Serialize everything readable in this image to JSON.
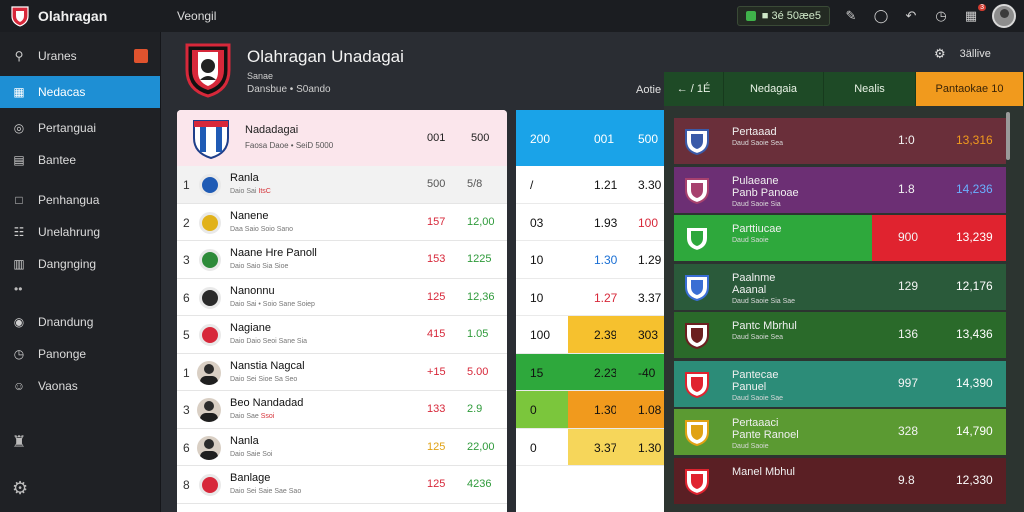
{
  "app": {
    "name": "Olahragan",
    "crumb": "Veongil"
  },
  "topbar": {
    "status_label": "■ 3é 50æe5",
    "badge": "3"
  },
  "sidebar": {
    "items": [
      {
        "label": "Uranes",
        "icon": "search-icon"
      },
      {
        "label": "Nedacas",
        "icon": "dashboard-icon",
        "active": true
      },
      {
        "label": "Pertanguai",
        "icon": "globe-icon"
      },
      {
        "label": "Bantee",
        "icon": "list-icon"
      },
      {
        "label": "Penhangua",
        "icon": "calendar-icon"
      },
      {
        "label": "Unelahrung",
        "icon": "stats-icon"
      },
      {
        "label": "Dangnging",
        "icon": "chart-icon"
      },
      {
        "label": "Dnandung",
        "icon": "ball-icon"
      },
      {
        "label": "Panonge",
        "icon": "clock-icon"
      },
      {
        "label": "Vaonas",
        "icon": "users-icon"
      }
    ]
  },
  "team": {
    "title": "Olahragan Unadagai",
    "sub1": "Sanae",
    "sub2": "Dansbue • S0ando"
  },
  "header_right": {
    "label": "3ällive",
    "tab_label": "Aotie"
  },
  "table": {
    "head": {
      "title": "Nadadagai",
      "sub": "Faosa Daoe • SeiD 5000",
      "c1": "001",
      "c2": "500"
    },
    "rows": [
      {
        "rank": "1",
        "name": "Ranla",
        "sub": "Daio Sai",
        "hl": "ItsC",
        "v1": "500",
        "v2": "5/8",
        "c1": "gray",
        "c2": "gray",
        "kind": "badge",
        "color": "#1f5bb5"
      },
      {
        "rank": "2",
        "name": "Nanene",
        "sub": "Daa Saio Soio Sano",
        "hl": "",
        "v1": "157",
        "v2": "12,00",
        "c1": "red",
        "c2": "green",
        "kind": "badge",
        "color": "#e1b21b"
      },
      {
        "rank": "3",
        "name": "Naane Hre Panoll",
        "sub": "Daio Saio Sia Sioe",
        "hl": "",
        "v1": "153",
        "v2": "1225",
        "c1": "red",
        "c2": "green",
        "kind": "badge",
        "color": "#2e8b3a"
      },
      {
        "rank": "6",
        "name": "Nanonnu",
        "sub": "Daio Sai • Soio Sane Soiep",
        "hl": "",
        "v1": "125",
        "v2": "12,36",
        "c1": "red",
        "c2": "green",
        "kind": "badge",
        "color": "#2a2a2a"
      },
      {
        "rank": "5",
        "name": "Nagiane",
        "sub": "Daio Daio Seoi Sane Sia",
        "hl": "",
        "v1": "415",
        "v2": "1.05",
        "c1": "red",
        "c2": "green",
        "kind": "badge",
        "color": "#d7283a"
      },
      {
        "rank": "1",
        "name": "Nanstia Nagcal",
        "sub": "Daio Sei Sioe Sa Seo",
        "hl": "",
        "v1": "+15",
        "v2": "5.00",
        "c1": "red",
        "c2": "red",
        "kind": "person"
      },
      {
        "rank": "3",
        "name": "Beo Nandadad",
        "sub": "Daio Sae",
        "hl": "Ssoi",
        "v1": "133",
        "v2": "2.9",
        "c1": "red",
        "c2": "green",
        "kind": "person"
      },
      {
        "rank": "6",
        "name": "Nanla",
        "sub": "Daio Saie Soi",
        "hl": "",
        "v1": "125",
        "v2": "22,00",
        "c1": "orange",
        "c2": "green",
        "kind": "person"
      },
      {
        "rank": "8",
        "name": "Banlage",
        "sub": "Daio Sei Saie Sae Sao",
        "hl": "",
        "v1": "125",
        "v2": "4236",
        "c1": "red",
        "c2": "green",
        "kind": "badge",
        "color": "#d7283a"
      }
    ]
  },
  "mid": {
    "head": [
      "200",
      "001",
      "500"
    ],
    "rows": [
      {
        "cells": [
          "/",
          "1.21",
          "3.30"
        ],
        "bg": [
          "",
          "",
          ""
        ]
      },
      {
        "cells": [
          "03",
          "1.93",
          "100"
        ],
        "bg": [
          "",
          "",
          ""
        ],
        "colors": [
          "",
          "",
          "#d7283a"
        ]
      },
      {
        "cells": [
          "10",
          "1.30",
          "1.29"
        ],
        "bg": [
          "",
          "",
          ""
        ],
        "colors": [
          "",
          "#1a6fd4",
          ""
        ]
      },
      {
        "cells": [
          "10",
          "1.27",
          "3.37"
        ],
        "bg": [
          "",
          "",
          ""
        ],
        "colors": [
          "",
          "#d7283a",
          ""
        ]
      },
      {
        "cells": [
          "100",
          "2.39",
          "303"
        ],
        "bg": [
          "#ffffff",
          "#f6c12e",
          "#f6c12e"
        ]
      },
      {
        "cells": [
          "15",
          "2.23",
          "-40"
        ],
        "bg": [
          "#2ea83c",
          "#2ea83c",
          "#2ea83c"
        ]
      },
      {
        "cells": [
          "0",
          "1.30",
          "1.08"
        ],
        "bg": [
          "#7bc63c",
          "#f19a1d",
          "#f19a1d"
        ]
      },
      {
        "cells": [
          "0",
          "3.37",
          "1.30"
        ],
        "bg": [
          "#ffffff",
          "#f6d65a",
          "#f6d65a"
        ]
      }
    ]
  },
  "rpanel": {
    "tabs": [
      {
        "label": "← / 1É",
        "w": 60
      },
      {
        "label": "Nedagaia",
        "w": 100
      },
      {
        "label": "Nealis",
        "w": 92
      },
      {
        "label": "Pantaokae 10",
        "w": 108,
        "active": true
      }
    ],
    "rows": [
      {
        "name": "Pertaaad",
        "sub": "Daud Saoie Sea",
        "v1": "1:0",
        "v2": "13,316",
        "bg": "#6a2f3a",
        "v2color": "#f19a1d",
        "crest": "#3a5aa8"
      },
      {
        "name": "Pulaeane",
        "name2": "Panb Panoae",
        "sub": "Daud Saoie Sia",
        "v1": "1.8",
        "v2": "14,236",
        "bg": "#6c2f74",
        "v2color": "#6ab0ff",
        "crest": "#a7416e"
      },
      {
        "name": "Parttiucae",
        "sub": "Daud Saoie",
        "v1": "900",
        "v2": "13,239",
        "bg": "#2ea83c",
        "seg": "#e0232f",
        "v2color": "#ffffff",
        "crest": "#2ea83c"
      },
      {
        "name": "Paalnme",
        "name2": "Aaanal",
        "sub": "Daud Saoie Sia Sae",
        "v1": "129",
        "v2": "12,176",
        "bg": "#2a5a3a",
        "v2color": "#ffffff",
        "crest": "#3a6ed4"
      },
      {
        "name": "Pantc Mbrhul",
        "sub": "Daud Saoie Sea",
        "v1": "136",
        "v2": "13,436",
        "bg": "#2a6a2a",
        "v2color": "#ffffff",
        "crest": "#6b2020"
      },
      {
        "name": "Pantecae",
        "name2": "Panuel",
        "sub": "Daud Saoie Sae",
        "v1": "997",
        "v2": "14,390",
        "bg": "#2c8c78",
        "v2color": "#ffffff",
        "crest": "#e0232f"
      },
      {
        "name": "Pertaaaci",
        "name2": "Pante Ranoel",
        "sub": "Daud Saoie",
        "v1": "328",
        "v2": "14,790",
        "bg": "#5b9a32",
        "v2color": "#ffffff",
        "crest": "#e0a214"
      },
      {
        "name": "Manel Mbhul",
        "sub": "",
        "v1": "9.8",
        "v2": "12,330",
        "bg": "#5a1f24",
        "v2color": "#ffffff",
        "crest": "#e0232f"
      }
    ]
  }
}
